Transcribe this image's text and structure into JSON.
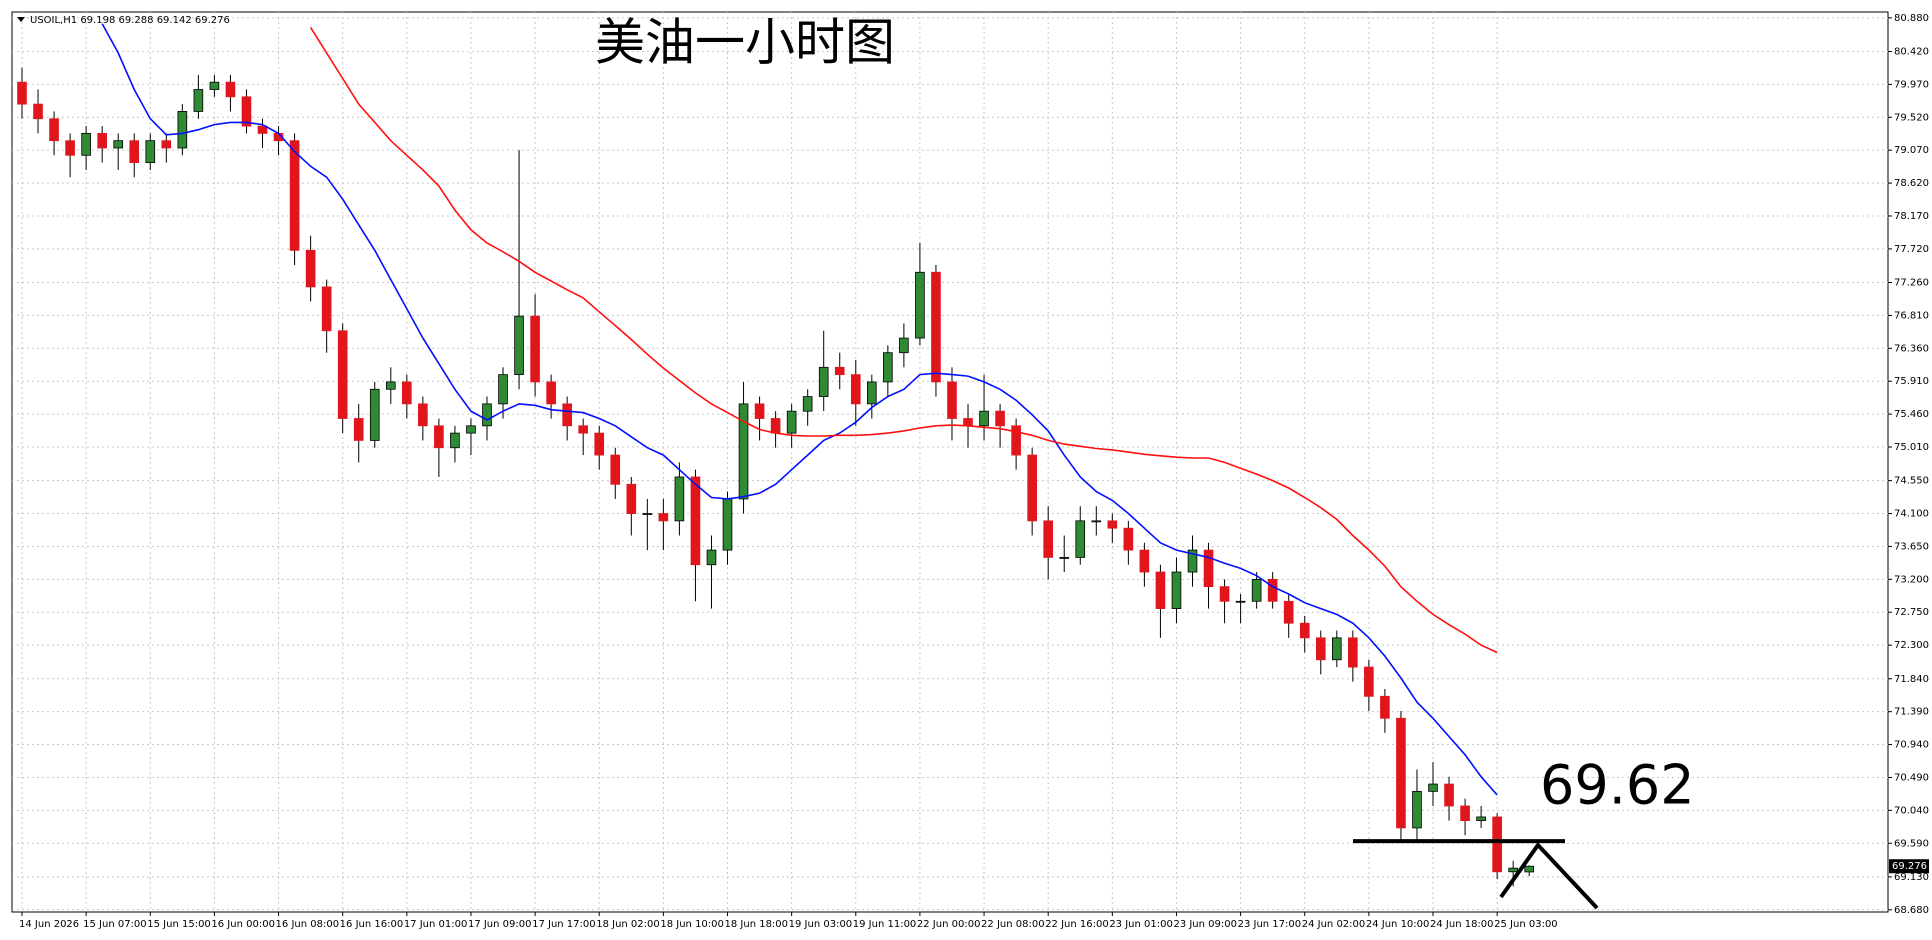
{
  "chart_data": {
    "type": "candlestick",
    "title": "美油一小时图",
    "symbol": "USOIL,H1",
    "categories": [
      "14 Jun 2026",
      null,
      null,
      null,
      "15 Jun 07:00",
      null,
      null,
      null,
      "15 Jun 15:00",
      null,
      null,
      null,
      "16 Jun 00:00",
      null,
      null,
      null,
      "16 Jun 08:00",
      null,
      null,
      null,
      "16 Jun 16:00",
      null,
      null,
      null,
      "17 Jun 01:00",
      null,
      null,
      null,
      "17 Jun 09:00",
      null,
      null,
      null,
      "17 Jun 17:00",
      null,
      null,
      null,
      "18 Jun 02:00",
      null,
      null,
      null,
      "18 Jun 10:00",
      null,
      null,
      null,
      "18 Jun 18:00",
      null,
      null,
      null,
      "19 Jun 03:00",
      null,
      null,
      null,
      "19 Jun 11:00",
      null,
      null,
      null,
      "22 Jun 00:00",
      null,
      null,
      null,
      "22 Jun 08:00",
      null,
      null,
      null,
      "22 Jun 16:00",
      null,
      null,
      null,
      "23 Jun 01:00",
      null,
      null,
      null,
      "23 Jun 09:00",
      null,
      null,
      null,
      "23 Jun 17:00",
      null,
      null,
      null,
      "24 Jun 02:00",
      null,
      null,
      null,
      "24 Jun 10:00",
      null,
      null,
      null,
      "24 Jun 18:00",
      null,
      null,
      null,
      "25 Jun 03:00",
      null,
      null
    ],
    "open": [
      80.0,
      79.7,
      79.5,
      79.2,
      79.0,
      79.3,
      79.1,
      79.2,
      78.9,
      79.2,
      79.1,
      79.6,
      79.9,
      80.0,
      79.8,
      79.4,
      79.3,
      79.2,
      77.7,
      77.2,
      76.6,
      75.4,
      75.1,
      75.8,
      75.9,
      75.6,
      75.3,
      75.0,
      75.2,
      75.3,
      75.6,
      76.0,
      76.8,
      75.9,
      75.6,
      75.3,
      75.2,
      74.9,
      74.5,
      74.1,
      74.1,
      74.0,
      74.6,
      73.4,
      73.6,
      74.3,
      75.6,
      75.4,
      75.2,
      75.5,
      75.7,
      76.1,
      76.0,
      75.6,
      75.9,
      76.3,
      76.5,
      77.4,
      75.9,
      75.4,
      75.3,
      75.5,
      75.3,
      74.9,
      74.0,
      73.5,
      73.5,
      74.0,
      74.0,
      73.9,
      73.6,
      73.3,
      72.8,
      73.3,
      73.6,
      73.1,
      72.9,
      72.9,
      73.2,
      72.9,
      72.6,
      72.4,
      72.1,
      72.4,
      72.0,
      71.6,
      71.3,
      69.8,
      70.3,
      70.4,
      70.1,
      69.9,
      69.95,
      69.2,
      69.198
    ],
    "high": [
      80.2,
      79.9,
      79.6,
      79.3,
      79.4,
      79.4,
      79.3,
      79.3,
      79.3,
      79.3,
      79.7,
      80.1,
      80.1,
      80.1,
      79.9,
      79.5,
      79.4,
      79.3,
      77.9,
      77.3,
      76.7,
      75.6,
      75.9,
      76.1,
      76.0,
      75.7,
      75.4,
      75.3,
      75.4,
      75.7,
      76.1,
      79.07,
      77.1,
      76.0,
      75.7,
      75.4,
      75.3,
      75.0,
      74.6,
      74.3,
      74.3,
      74.8,
      74.7,
      73.8,
      74.4,
      75.9,
      75.7,
      75.5,
      75.6,
      75.8,
      76.6,
      76.3,
      76.2,
      76.0,
      76.4,
      76.7,
      77.8,
      77.5,
      76.1,
      75.6,
      76.0,
      75.6,
      75.4,
      75.0,
      74.2,
      73.8,
      74.2,
      74.2,
      74.1,
      74.0,
      73.7,
      73.4,
      73.5,
      73.8,
      73.7,
      73.2,
      73.0,
      73.3,
      73.3,
      73.0,
      72.7,
      72.5,
      72.5,
      72.5,
      72.1,
      71.7,
      71.4,
      70.6,
      70.7,
      70.5,
      70.2,
      70.1,
      70.0,
      69.35,
      69.288
    ],
    "low": [
      79.5,
      79.3,
      79.0,
      78.7,
      78.8,
      78.9,
      78.8,
      78.7,
      78.8,
      78.9,
      79.0,
      79.5,
      79.8,
      79.6,
      79.3,
      79.1,
      79.0,
      77.5,
      77.0,
      76.3,
      75.2,
      74.8,
      75.0,
      75.6,
      75.4,
      75.1,
      74.6,
      74.8,
      74.9,
      75.1,
      75.4,
      75.8,
      75.7,
      75.4,
      75.1,
      74.9,
      74.7,
      74.3,
      73.8,
      73.6,
      73.6,
      73.8,
      72.9,
      72.8,
      73.4,
      74.1,
      75.1,
      75.0,
      75.0,
      75.3,
      75.5,
      75.8,
      75.3,
      75.4,
      75.7,
      76.1,
      76.4,
      75.7,
      75.1,
      75.0,
      75.1,
      75.0,
      74.7,
      73.8,
      73.2,
      73.3,
      73.4,
      73.8,
      73.7,
      73.4,
      73.1,
      72.4,
      72.6,
      73.1,
      72.8,
      72.6,
      72.6,
      72.8,
      72.8,
      72.4,
      72.2,
      71.9,
      72.0,
      71.8,
      71.4,
      71.1,
      69.6,
      69.6,
      70.1,
      69.9,
      69.7,
      69.8,
      69.1,
      69.0,
      69.142
    ],
    "close": [
      79.7,
      79.5,
      79.2,
      79.0,
      79.3,
      79.1,
      79.2,
      78.9,
      79.2,
      79.1,
      79.6,
      79.9,
      80.0,
      79.8,
      79.4,
      79.3,
      79.2,
      77.7,
      77.2,
      76.6,
      75.4,
      75.1,
      75.8,
      75.9,
      75.6,
      75.3,
      75.0,
      75.2,
      75.3,
      75.6,
      76.0,
      76.8,
      75.9,
      75.6,
      75.3,
      75.2,
      74.9,
      74.5,
      74.1,
      74.1,
      74.0,
      74.6,
      73.4,
      73.6,
      74.3,
      75.6,
      75.4,
      75.2,
      75.5,
      75.7,
      76.1,
      76.0,
      75.6,
      75.9,
      76.3,
      76.5,
      77.4,
      75.9,
      75.4,
      75.3,
      75.5,
      75.3,
      74.9,
      74.0,
      73.5,
      73.5,
      74.0,
      74.0,
      73.9,
      73.6,
      73.3,
      72.8,
      73.3,
      73.6,
      73.1,
      72.9,
      72.9,
      73.2,
      72.9,
      72.6,
      72.4,
      72.1,
      72.4,
      72.0,
      71.6,
      71.3,
      69.8,
      70.3,
      70.4,
      70.1,
      69.9,
      69.95,
      69.2,
      69.25,
      69.276
    ],
    "up_color": "#2f8a36",
    "down_color": "#e0161c",
    "ma": [
      {
        "color": "#0010ff",
        "values": [
          null,
          null,
          null,
          null,
          null,
          80.8,
          80.4,
          79.9,
          79.5,
          79.28,
          79.3,
          79.35,
          79.42,
          79.45,
          79.45,
          79.42,
          79.3,
          79.05,
          78.85,
          78.7,
          78.4,
          78.05,
          77.7,
          77.3,
          76.9,
          76.5,
          76.15,
          75.8,
          75.5,
          75.38,
          75.5,
          75.6,
          75.58,
          75.52,
          75.5,
          75.48,
          75.4,
          75.3,
          75.15,
          75.0,
          74.9,
          74.7,
          74.5,
          74.32,
          74.3,
          74.33,
          74.38,
          74.5,
          74.7,
          74.9,
          75.1,
          75.2,
          75.35,
          75.55,
          75.7,
          75.8,
          76.0,
          76.02,
          76.0,
          75.98,
          75.9,
          75.8,
          75.65,
          75.45,
          75.23,
          74.9,
          74.6,
          74.4,
          74.28,
          74.1,
          73.9,
          73.7,
          73.6,
          73.55,
          73.5,
          73.42,
          73.35,
          73.25,
          73.1,
          73.0,
          72.88,
          72.8,
          72.72,
          72.6,
          72.4,
          72.15,
          71.85,
          71.52,
          71.3,
          71.05,
          70.8,
          70.5,
          70.25,
          null,
          null
        ]
      },
      {
        "color": "#ff1010",
        "values": [
          null,
          null,
          null,
          null,
          null,
          null,
          null,
          null,
          null,
          null,
          null,
          null,
          null,
          null,
          null,
          null,
          null,
          null,
          80.75,
          80.4,
          80.05,
          79.7,
          79.45,
          79.2,
          79.0,
          78.8,
          78.58,
          78.25,
          77.98,
          77.8,
          77.68,
          77.55,
          77.4,
          77.28,
          77.16,
          77.05,
          76.86,
          76.67,
          76.48,
          76.28,
          76.09,
          75.92,
          75.75,
          75.6,
          75.48,
          75.36,
          75.25,
          75.2,
          75.17,
          75.16,
          75.16,
          75.17,
          75.17,
          75.18,
          75.2,
          75.23,
          75.27,
          75.3,
          75.31,
          75.3,
          75.28,
          75.26,
          75.22,
          75.17,
          75.1,
          75.05,
          75.02,
          74.99,
          74.97,
          74.94,
          74.91,
          74.89,
          74.87,
          74.86,
          74.86,
          74.8,
          74.72,
          74.64,
          74.55,
          74.45,
          74.32,
          74.18,
          74.02,
          73.8,
          73.6,
          73.38,
          73.1,
          72.9,
          72.72,
          72.58,
          72.45,
          72.3,
          72.2,
          null,
          null
        ]
      }
    ],
    "ylim": [
      68.65,
      80.96
    ],
    "yticks": [
      {
        "value": 80.88,
        "label": "80.880"
      },
      {
        "value": 80.42,
        "label": "80.420"
      },
      {
        "value": 79.97,
        "label": "79.970"
      },
      {
        "value": 79.52,
        "label": "79.520"
      },
      {
        "value": 79.07,
        "label": "79.070"
      },
      {
        "value": 78.62,
        "label": "78.620"
      },
      {
        "value": 78.17,
        "label": "78.170"
      },
      {
        "value": 77.72,
        "label": "77.720"
      },
      {
        "value": 77.26,
        "label": "77.260"
      },
      {
        "value": 76.81,
        "label": "76.810"
      },
      {
        "value": 76.36,
        "label": "76.360"
      },
      {
        "value": 75.91,
        "label": "75.910"
      },
      {
        "value": 75.46,
        "label": "75.460"
      },
      {
        "value": 75.01,
        "label": "75.010"
      },
      {
        "value": 74.55,
        "label": "74.550"
      },
      {
        "value": 74.1,
        "label": "74.100"
      },
      {
        "value": 73.65,
        "label": "73.650"
      },
      {
        "value": 73.2,
        "label": "73.200"
      },
      {
        "value": 72.75,
        "label": "72.750"
      },
      {
        "value": 72.3,
        "label": "72.300"
      },
      {
        "value": 71.84,
        "label": "71.840"
      },
      {
        "value": 71.39,
        "label": "71.390"
      },
      {
        "value": 70.94,
        "label": "70.940"
      },
      {
        "value": 70.49,
        "label": "70.490"
      },
      {
        "value": 70.04,
        "label": "70.040"
      },
      {
        "value": 69.59,
        "label": "69.590"
      },
      {
        "value": 69.13,
        "label": "69.130"
      },
      {
        "value": 68.68,
        "label": "68.680"
      }
    ],
    "grid": true,
    "annotation_level": 69.62
  }
}
